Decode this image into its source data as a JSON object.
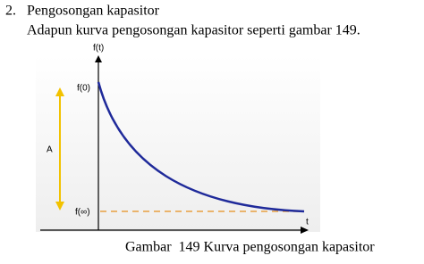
{
  "section": {
    "number": "2.",
    "title": "Pengosongan kapasitor",
    "text": "Adapun kurva pengosongan kapasitor seperti gambar 149."
  },
  "figure": {
    "y_label": "f(t)",
    "start_label": "f(0)",
    "amplitude_label": "A",
    "end_label": "f(∞)",
    "x_label": "t",
    "caption": "Gambar  149 Kurva pengosongan kapasitor"
  }
}
